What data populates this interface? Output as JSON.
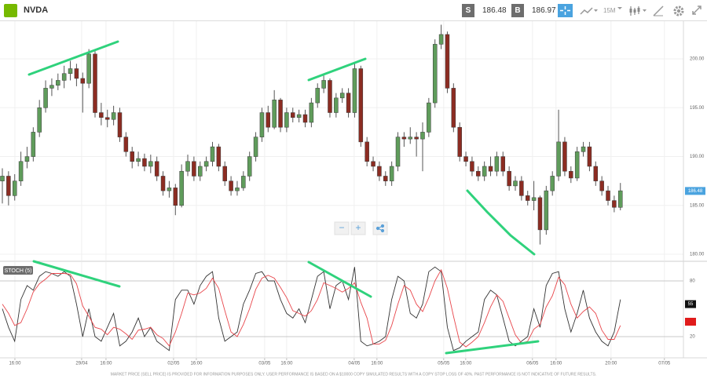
{
  "toolbar": {
    "symbol": "NVDA",
    "sell_label": "S",
    "sell_price": 186.48,
    "buy_label": "B",
    "buy_price": 186.97,
    "timeframe": "15M"
  },
  "controls": {
    "zoom_out": "−",
    "zoom_in": "+"
  },
  "disclaimer": "MARKET PRICE (SELL PRICE) IS PROVIDED FOR INFORMATION PURPOSES ONLY. USER PERFORMANCE IS BASED ON A $10000 COPY SIMULATED RESULTS WITH A COPY STOP LOSS OF 40%. PAST PERFORMANCE IS NOT INDICATIVE OF FUTURE RESULTS.",
  "chart_data": [
    {
      "type": "candlestick",
      "up_color": "#5f9c5b",
      "down_color": "#8c2c22",
      "grid": true,
      "xlim": [
        -0.38,
        110.2
      ],
      "xticks": [
        {
          "value": 2.03,
          "label": "16:00"
        },
        {
          "value": 12.83,
          "label": "29/04"
        },
        {
          "value": 16.77,
          "label": "16:00"
        },
        {
          "value": 27.7,
          "label": "02/05"
        },
        {
          "value": 31.39,
          "label": "16:00"
        },
        {
          "value": 42.44,
          "label": "03/05"
        },
        {
          "value": 46.0,
          "label": "16:00"
        },
        {
          "value": 56.93,
          "label": "04/05"
        },
        {
          "value": 60.61,
          "label": "16:00"
        },
        {
          "value": 71.41,
          "label": "05/05"
        },
        {
          "value": 74.97,
          "label": "16:00"
        },
        {
          "value": 85.77,
          "label": "06/05"
        },
        {
          "value": 89.58,
          "label": "16:00"
        },
        {
          "value": 98.48,
          "label": "20:00"
        },
        {
          "value": 107.12,
          "label": "07/05"
        }
      ],
      "ylim": [
        179.36,
        203.86
      ],
      "yticks": [
        {
          "value": 180,
          "label": "180.00"
        },
        {
          "value": 185,
          "label": "185.00"
        },
        {
          "value": 190,
          "label": "190.00"
        },
        {
          "value": 195,
          "label": "195.00"
        },
        {
          "value": 200,
          "label": "200.00"
        }
      ],
      "open": [
        187.5,
        188.0,
        186.0,
        187.5,
        189.5,
        190.0,
        192.5,
        195.0,
        197.0,
        197.3,
        197.8,
        198.5,
        199.0,
        198.0,
        197.5,
        200.5,
        194.5,
        194.0,
        193.8,
        194.5,
        192.0,
        190.5,
        189.5,
        189.8,
        189.0,
        189.5,
        188.0,
        186.5,
        186.8,
        185.0,
        188.5,
        189.5,
        188.0,
        189.0,
        189.5,
        191.0,
        189.0,
        187.5,
        186.5,
        186.8,
        188.0,
        190.0,
        192.0,
        194.5,
        193.0,
        195.8,
        193.0,
        194.5,
        194.0,
        194.3,
        193.5,
        195.5,
        197.0,
        197.8,
        194.5,
        196.0,
        196.5,
        194.5,
        199.0,
        191.5,
        189.5,
        189.0,
        188.0,
        187.5,
        189.0,
        192.0,
        191.8,
        192.0,
        191.8,
        192.5,
        195.5,
        201.5,
        202.5,
        197.0,
        193.0,
        190.0,
        189.5,
        188.5,
        188.0,
        189.0,
        188.5,
        190.0,
        188.5,
        187.0,
        187.5,
        186.0,
        185.5,
        185.8,
        182.5,
        186.5,
        188.0,
        191.5,
        188.5,
        187.8,
        190.5,
        191.0,
        189.0,
        187.5,
        186.5,
        185.5,
        184.8
      ],
      "high": [
        188.8,
        188.5,
        188.2,
        190.5,
        191.0,
        193.0,
        195.8,
        197.8,
        198.0,
        198.5,
        199.3,
        199.8,
        199.5,
        198.6,
        201.0,
        200.8,
        195.5,
        194.8,
        195.2,
        195.0,
        192.5,
        191.0,
        190.5,
        190.3,
        190.2,
        190.0,
        188.5,
        187.5,
        187.2,
        189.2,
        190.2,
        190.0,
        189.5,
        190.0,
        191.5,
        191.3,
        189.5,
        188.0,
        187.5,
        188.5,
        190.5,
        192.5,
        195.0,
        195.2,
        196.8,
        196.0,
        195.0,
        195.0,
        194.8,
        194.8,
        196.0,
        197.5,
        198.3,
        198.0,
        196.5,
        197.0,
        197.0,
        199.5,
        199.3,
        192.0,
        190.0,
        189.5,
        188.5,
        189.5,
        192.5,
        192.5,
        193.0,
        192.5,
        193.5,
        196.0,
        202.0,
        203.5,
        202.8,
        197.5,
        193.5,
        190.5,
        190.0,
        189.0,
        189.5,
        190.0,
        190.5,
        190.5,
        189.0,
        188.0,
        188.0,
        186.5,
        187.5,
        186.0,
        187.0,
        188.5,
        194.8,
        192.0,
        189.0,
        191.0,
        191.5,
        191.5,
        189.5,
        188.0,
        187.0,
        186.0,
        187.3
      ],
      "low": [
        185.2,
        185.0,
        185.5,
        187.0,
        188.8,
        189.5,
        192.0,
        194.5,
        196.2,
        196.8,
        197.0,
        197.8,
        197.2,
        194.5,
        197.0,
        194.0,
        193.2,
        193.0,
        193.2,
        191.5,
        190.0,
        188.8,
        189.0,
        188.5,
        188.3,
        187.5,
        186.0,
        185.8,
        184.0,
        184.8,
        188.0,
        187.5,
        187.5,
        188.5,
        189.0,
        188.5,
        187.0,
        186.0,
        186.0,
        186.5,
        187.5,
        189.5,
        191.5,
        192.5,
        192.8,
        192.5,
        192.5,
        193.5,
        193.5,
        193.0,
        193.0,
        195.0,
        196.5,
        194.0,
        194.0,
        195.5,
        194.0,
        194.0,
        191.0,
        189.0,
        188.5,
        187.5,
        187.0,
        187.0,
        188.5,
        191.0,
        191.3,
        190.0,
        188.5,
        192.0,
        195.0,
        201.0,
        196.5,
        192.5,
        189.5,
        189.0,
        188.0,
        187.5,
        187.5,
        188.0,
        188.0,
        188.0,
        186.5,
        186.5,
        185.5,
        185.0,
        184.5,
        181.0,
        182.0,
        186.0,
        187.5,
        188.0,
        187.3,
        187.5,
        190.0,
        188.5,
        187.0,
        186.0,
        185.0,
        184.3,
        184.5
      ],
      "close": [
        188.0,
        186.0,
        187.5,
        189.5,
        190.0,
        192.5,
        195.0,
        197.0,
        197.3,
        197.8,
        198.5,
        199.0,
        198.0,
        197.5,
        200.5,
        194.5,
        194.0,
        193.8,
        194.5,
        192.0,
        190.5,
        189.5,
        189.8,
        189.0,
        189.5,
        188.0,
        186.5,
        186.8,
        185.0,
        188.5,
        189.5,
        188.0,
        189.0,
        189.5,
        191.0,
        189.0,
        187.5,
        186.5,
        186.8,
        188.0,
        190.0,
        192.0,
        194.5,
        193.0,
        195.8,
        193.0,
        194.5,
        194.0,
        194.3,
        193.5,
        195.5,
        197.0,
        197.8,
        194.5,
        196.0,
        196.5,
        194.5,
        199.0,
        191.5,
        189.5,
        189.0,
        188.0,
        187.5,
        189.0,
        192.0,
        191.8,
        192.0,
        191.8,
        192.5,
        195.5,
        201.5,
        202.5,
        197.0,
        193.0,
        190.0,
        189.5,
        188.5,
        188.0,
        189.0,
        188.5,
        190.0,
        188.5,
        187.0,
        187.5,
        186.0,
        185.5,
        185.8,
        182.5,
        186.5,
        188.0,
        191.5,
        188.5,
        187.8,
        190.5,
        191.0,
        189.0,
        187.5,
        186.5,
        185.5,
        184.8,
        186.5
      ]
    },
    {
      "type": "line",
      "title": "STOCH (5)",
      "xlim": [
        -0.38,
        110.2
      ],
      "ylim": [
        -2,
        100.3
      ],
      "yticks": [
        20,
        80
      ],
      "last_value": 55,
      "series": [
        {
          "color": "#333333",
          "values": [
            50,
            30,
            15,
            60,
            75,
            70,
            85,
            90,
            88,
            85,
            90,
            85,
            55,
            20,
            50,
            20,
            15,
            30,
            45,
            10,
            15,
            25,
            40,
            20,
            30,
            15,
            10,
            5,
            60,
            70,
            70,
            55,
            75,
            85,
            90,
            40,
            15,
            20,
            25,
            55,
            70,
            88,
            90,
            80,
            80,
            60,
            45,
            40,
            50,
            35,
            60,
            85,
            90,
            50,
            75,
            80,
            60,
            95,
            15,
            10,
            12,
            15,
            20,
            60,
            85,
            80,
            45,
            40,
            55,
            90,
            95,
            90,
            30,
            5,
            8,
            15,
            20,
            25,
            60,
            70,
            65,
            40,
            15,
            10,
            15,
            20,
            50,
            30,
            75,
            88,
            90,
            50,
            25,
            45,
            70,
            40,
            25,
            15,
            10,
            25,
            60
          ]
        },
        {
          "color": "#e8464b",
          "values": [
            55,
            45,
            32,
            35,
            50,
            68,
            77,
            82,
            88,
            88,
            88,
            87,
            77,
            53,
            42,
            30,
            28,
            22,
            30,
            28,
            23,
            17,
            27,
            28,
            30,
            22,
            18,
            10,
            25,
            45,
            67,
            65,
            67,
            72,
            83,
            72,
            48,
            25,
            20,
            33,
            50,
            71,
            83,
            86,
            83,
            73,
            62,
            48,
            45,
            42,
            48,
            60,
            78,
            75,
            72,
            68,
            72,
            78,
            57,
            40,
            12,
            12,
            16,
            32,
            55,
            75,
            70,
            55,
            47,
            62,
            80,
            92,
            72,
            42,
            14,
            9,
            14,
            20,
            35,
            52,
            65,
            58,
            40,
            22,
            13,
            15,
            28,
            33,
            52,
            64,
            84,
            76,
            55,
            40,
            47,
            52,
            45,
            27,
            17,
            17,
            32
          ]
        }
      ]
    }
  ]
}
